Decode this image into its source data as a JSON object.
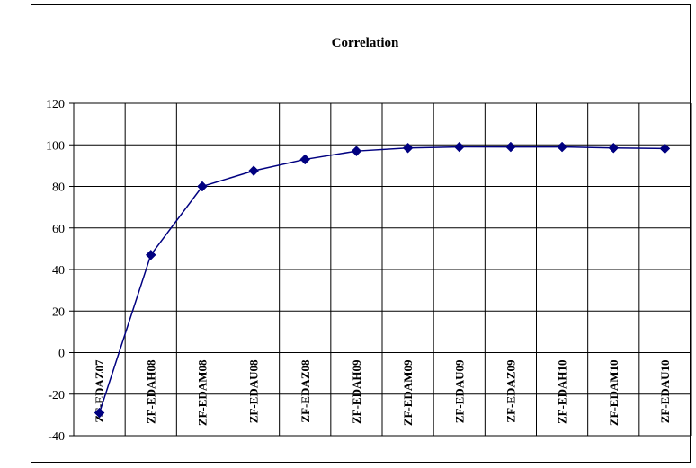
{
  "chart_data": {
    "type": "line",
    "title": "Correlation",
    "xlabel": "",
    "ylabel": "",
    "categories": [
      "ZF-EDAZ07",
      "ZF-EDAH08",
      "ZF-EDAM08",
      "ZF-EDAU08",
      "ZF-EDAZ08",
      "ZF-EDAH09",
      "ZF-EDAM09",
      "ZF-EDAU09",
      "ZF-EDAZ09",
      "ZF-EDAH10",
      "ZF-EDAM10",
      "ZF-EDAU10"
    ],
    "yticks": [
      "120",
      "100",
      "80",
      "60",
      "40",
      "20",
      "0",
      "-20",
      "-40"
    ],
    "ylim": [
      -40,
      120
    ],
    "ytick_step": 20,
    "grid": true,
    "legend": "none",
    "series": [
      {
        "values": [
          -29,
          47,
          80,
          87.5,
          93,
          97,
          98.5,
          99,
          99,
          99,
          98.5,
          98.2
        ]
      }
    ],
    "colors": {
      "line": "#000080",
      "marker": "#000080",
      "grid": "#000000"
    }
  }
}
